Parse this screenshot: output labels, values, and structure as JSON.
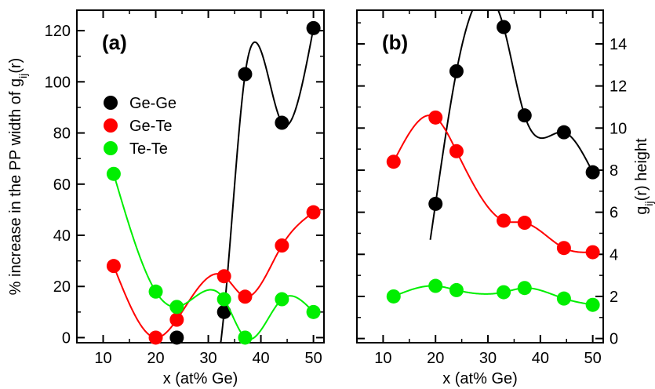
{
  "chart_data": [
    {
      "type": "scatter",
      "panel_label": "(a)",
      "xlabel": "x (at% Ge)",
      "ylabel": "% increase in the PP width of g",
      "ylabel_sub": "ij",
      "ylabel_tail": "(r)",
      "xlim": [
        5,
        52
      ],
      "ylim": [
        -2,
        128
      ],
      "xticks": [
        10,
        20,
        30,
        40,
        50
      ],
      "yticks": [
        0,
        20,
        40,
        60,
        80,
        100,
        120
      ],
      "legend_position": "upper-left",
      "series": [
        {
          "name": "Ge-Ge",
          "color": "#000000",
          "x": [
            24,
            33,
            37,
            44,
            50
          ],
          "y": [
            0,
            10,
            103,
            84,
            121
          ]
        },
        {
          "name": "Ge-Te",
          "color": "#ff0000",
          "x": [
            12,
            20,
            24,
            33,
            37,
            44,
            50
          ],
          "y": [
            28,
            0,
            7,
            24,
            16,
            36,
            49
          ]
        },
        {
          "name": "Te-Te",
          "color": "#00ee00",
          "x": [
            12,
            20,
            24,
            33,
            37,
            44,
            50
          ],
          "y": [
            64,
            18,
            12,
            15,
            0,
            15,
            10
          ]
        }
      ]
    },
    {
      "type": "scatter",
      "panel_label": "(b)",
      "xlabel": "x (at% Ge)",
      "ylabel": "g",
      "ylabel_sub": "ij",
      "ylabel_tail": "(r) height",
      "xlim": [
        5,
        52
      ],
      "ylim": [
        -0.2,
        15.6
      ],
      "xticks": [
        10,
        20,
        30,
        40,
        50
      ],
      "yticks": [
        0,
        2,
        4,
        6,
        8,
        10,
        12,
        14
      ],
      "series": [
        {
          "name": "Ge-Ge",
          "color": "#000000",
          "x": [
            20,
            24,
            33,
            37,
            44.5,
            50
          ],
          "y": [
            6.4,
            12.7,
            14.8,
            10.6,
            9.8,
            7.9
          ]
        },
        {
          "name": "Ge-Te",
          "color": "#ff0000",
          "x": [
            12,
            20,
            24,
            33,
            37,
            44.5,
            50
          ],
          "y": [
            8.4,
            10.5,
            8.9,
            5.6,
            5.5,
            4.3,
            4.1
          ]
        },
        {
          "name": "Te-Te",
          "color": "#00ee00",
          "x": [
            12,
            20,
            24,
            33,
            37,
            44.5,
            50
          ],
          "y": [
            2.0,
            2.5,
            2.3,
            2.2,
            2.4,
            1.9,
            1.6
          ]
        }
      ]
    }
  ]
}
